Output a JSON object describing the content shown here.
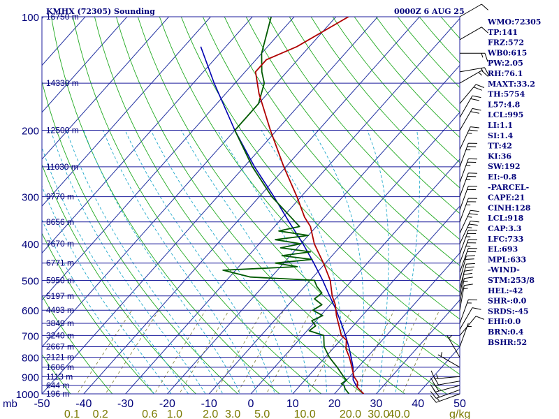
{
  "header": {
    "station": "KMHX (72305) Sounding",
    "time": "0000Z  6 AUG 25"
  },
  "colors": {
    "background": "#ffffff",
    "axis_text": "#00007a",
    "isobar": "#1c1c9c",
    "isotherm": "#2030a0",
    "dry_adiabat": "#22aa22",
    "moist_adiabat": "#22aacc",
    "mixing_ratio": "#7a7a30",
    "temperature": "#b00000",
    "dewpoint": "#005a00",
    "parcel": "#0000b0",
    "mixing_ratio_text": "#7a7a00",
    "wind": "#000000"
  },
  "chart_data": {
    "type": "skew-t log-p",
    "pressure_units": "mb",
    "pressure_range": [
      1000,
      100
    ],
    "temperature_range": [
      -50,
      50
    ],
    "pressure_ticks": [
      "100",
      "200",
      "300",
      "400",
      "500",
      "600",
      "700",
      "800",
      "900",
      "1000"
    ],
    "temperature_ticks": [
      "-50",
      "-40",
      "-30",
      "-20",
      "-10",
      "0",
      "10",
      "20",
      "30",
      "40",
      "50"
    ],
    "mixing_ratio_ticks": [
      "0.1",
      "0.2",
      "0.6",
      "1.0",
      "2.0",
      "3.0",
      "5.0",
      "10.0",
      "20.0",
      "30.0",
      "40.0"
    ],
    "mixing_ratio_units": "g/kg",
    "height_labels": [
      "16750 m",
      "14330 m",
      "12500 m",
      "11030 m",
      "9770 m",
      "8656 m",
      "7670 m",
      "6771 m",
      "5950 m",
      "5197 m",
      "4493 m",
      "3849 m",
      "3240 m",
      "2667 m",
      "2121 m",
      "1606 m",
      "1113 m",
      "644 m",
      "196 m"
    ],
    "height_pressures": [
      100,
      150,
      200,
      250,
      300,
      350,
      400,
      450,
      500,
      550,
      600,
      650,
      700,
      750,
      800,
      850,
      900,
      950,
      1000
    ],
    "temperature_profile": [
      {
        "p": 1000,
        "t": 27.0
      },
      {
        "p": 960,
        "t": 24.0
      },
      {
        "p": 930,
        "t": 23.0
      },
      {
        "p": 900,
        "t": 21.0
      },
      {
        "p": 850,
        "t": 18.5
      },
      {
        "p": 800,
        "t": 15.8
      },
      {
        "p": 760,
        "t": 13.2
      },
      {
        "p": 720,
        "t": 11.4
      },
      {
        "p": 700,
        "t": 9.2
      },
      {
        "p": 660,
        "t": 6.6
      },
      {
        "p": 620,
        "t": 3.8
      },
      {
        "p": 580,
        "t": 1.2
      },
      {
        "p": 550,
        "t": -1.4
      },
      {
        "p": 500,
        "t": -5.2
      },
      {
        "p": 450,
        "t": -10.5
      },
      {
        "p": 400,
        "t": -16.8
      },
      {
        "p": 360,
        "t": -21.4
      },
      {
        "p": 340,
        "t": -24.8
      },
      {
        "p": 300,
        "t": -31.0
      },
      {
        "p": 250,
        "t": -40.5
      },
      {
        "p": 200,
        "t": -51.5
      },
      {
        "p": 160,
        "t": -62.0
      },
      {
        "p": 140,
        "t": -67.5
      },
      {
        "p": 130,
        "t": -67.5
      },
      {
        "p": 120,
        "t": -63.0
      },
      {
        "p": 100,
        "t": -57.0
      }
    ],
    "dewpoint_profile": [
      {
        "p": 1000,
        "t": 23.5
      },
      {
        "p": 970,
        "t": 21.5
      },
      {
        "p": 950,
        "t": 20.5
      },
      {
        "p": 940,
        "t": 19.5
      },
      {
        "p": 920,
        "t": 20.0
      },
      {
        "p": 900,
        "t": 18.5
      },
      {
        "p": 850,
        "t": 15.0
      },
      {
        "p": 800,
        "t": 11.0
      },
      {
        "p": 750,
        "t": 7.5
      },
      {
        "p": 700,
        "t": 5.0
      },
      {
        "p": 680,
        "t": 0.5
      },
      {
        "p": 660,
        "t": 1.0
      },
      {
        "p": 640,
        "t": -1.0
      },
      {
        "p": 620,
        "t": 0.5
      },
      {
        "p": 600,
        "t": -3.0
      },
      {
        "p": 580,
        "t": -2.0
      },
      {
        "p": 560,
        "t": -5.0
      },
      {
        "p": 540,
        "t": -4.5
      },
      {
        "p": 520,
        "t": -7.0
      },
      {
        "p": 500,
        "t": -9.0
      },
      {
        "p": 490,
        "t": -25.0
      },
      {
        "p": 470,
        "t": -33.0
      },
      {
        "p": 460,
        "t": -16.0
      },
      {
        "p": 450,
        "t": -22.0
      },
      {
        "p": 440,
        "t": -14.0
      },
      {
        "p": 430,
        "t": -22.0
      },
      {
        "p": 420,
        "t": -16.0
      },
      {
        "p": 410,
        "t": -24.0
      },
      {
        "p": 400,
        "t": -20.0
      },
      {
        "p": 390,
        "t": -27.0
      },
      {
        "p": 380,
        "t": -20.0
      },
      {
        "p": 370,
        "t": -28.0
      },
      {
        "p": 360,
        "t": -24.0
      },
      {
        "p": 350,
        "t": -26.0
      },
      {
        "p": 300,
        "t": -37.0
      },
      {
        "p": 250,
        "t": -48.0
      },
      {
        "p": 200,
        "t": -60.0
      },
      {
        "p": 170,
        "t": -60.0
      },
      {
        "p": 150,
        "t": -63.0
      },
      {
        "p": 140,
        "t": -66.0
      },
      {
        "p": 125,
        "t": -70.0
      },
      {
        "p": 100,
        "t": -75.5
      }
    ],
    "parcel_profile": [
      {
        "p": 1000,
        "t": 27.0
      },
      {
        "p": 960,
        "t": 24.0
      },
      {
        "p": 918,
        "t": 21.5
      },
      {
        "p": 850,
        "t": 18.8
      },
      {
        "p": 800,
        "t": 16.2
      },
      {
        "p": 750,
        "t": 13.4
      },
      {
        "p": 700,
        "t": 10.2
      },
      {
        "p": 650,
        "t": 6.6
      },
      {
        "p": 600,
        "t": 2.6
      },
      {
        "p": 550,
        "t": -2.0
      },
      {
        "p": 500,
        "t": -7.0
      },
      {
        "p": 450,
        "t": -12.8
      },
      {
        "p": 400,
        "t": -19.5
      },
      {
        "p": 350,
        "t": -27.5
      },
      {
        "p": 300,
        "t": -36.5
      },
      {
        "p": 250,
        "t": -47.5
      },
      {
        "p": 200,
        "t": -60.0
      },
      {
        "p": 150,
        "t": -75.0
      },
      {
        "p": 120,
        "t": -86.0
      }
    ],
    "wind_barbs": [
      {
        "p": 1000,
        "dir": 250,
        "kt": 15
      },
      {
        "p": 975,
        "dir": 250,
        "kt": 20
      },
      {
        "p": 950,
        "dir": 255,
        "kt": 20
      },
      {
        "p": 925,
        "dir": 260,
        "kt": 20
      },
      {
        "p": 900,
        "dir": 265,
        "kt": 15
      },
      {
        "p": 850,
        "dir": 300,
        "kt": 5
      },
      {
        "p": 800,
        "dir": 330,
        "kt": 5
      },
      {
        "p": 750,
        "dir": 20,
        "kt": 5
      },
      {
        "p": 700,
        "dir": 40,
        "kt": 10
      },
      {
        "p": 675,
        "dir": 30,
        "kt": 10
      },
      {
        "p": 650,
        "dir": 20,
        "kt": 15
      },
      {
        "p": 600,
        "dir": 10,
        "kt": 15
      },
      {
        "p": 575,
        "dir": 10,
        "kt": 15
      },
      {
        "p": 550,
        "dir": 10,
        "kt": 20
      },
      {
        "p": 525,
        "dir": 15,
        "kt": 20
      },
      {
        "p": 500,
        "dir": 15,
        "kt": 20
      },
      {
        "p": 475,
        "dir": 20,
        "kt": 20
      },
      {
        "p": 450,
        "dir": 20,
        "kt": 25
      },
      {
        "p": 425,
        "dir": 20,
        "kt": 25
      },
      {
        "p": 400,
        "dir": 25,
        "kt": 25
      },
      {
        "p": 375,
        "dir": 25,
        "kt": 25
      },
      {
        "p": 350,
        "dir": 20,
        "kt": 25
      },
      {
        "p": 325,
        "dir": 20,
        "kt": 20
      },
      {
        "p": 300,
        "dir": 20,
        "kt": 25
      },
      {
        "p": 275,
        "dir": 20,
        "kt": 25
      },
      {
        "p": 250,
        "dir": 20,
        "kt": 25
      },
      {
        "p": 225,
        "dir": 25,
        "kt": 25
      },
      {
        "p": 200,
        "dir": 30,
        "kt": 20
      },
      {
        "p": 185,
        "dir": 30,
        "kt": 20
      },
      {
        "p": 170,
        "dir": 40,
        "kt": 20
      },
      {
        "p": 150,
        "dir": 60,
        "kt": 15
      },
      {
        "p": 140,
        "dir": 80,
        "kt": 15
      },
      {
        "p": 125,
        "dir": 90,
        "kt": 15
      },
      {
        "p": 115,
        "dir": 60,
        "kt": 10
      },
      {
        "p": 100,
        "dir": 60,
        "kt": 10
      }
    ]
  },
  "indices": [
    "WMO:72305",
    "TP:141",
    "FRZ:572",
    "WB0:615",
    "PW:2.05",
    "RH:76.1",
    "MAXT:33.2",
    "TH:5754",
    "L57:4.8",
    "LCL:995",
    "LI:1.1",
    "SI:1.4",
    "TT:42",
    "KI:36",
    "SW:192",
    "EI:-0.8",
    "-PARCEL-",
    "CAPE:21",
    "CINH:128",
    "LCL:918",
    "CAP:3.3",
    "LFC:733",
    "EL:693",
    "MPL:633",
    "-WIND-",
    "STM:253/8",
    "HEL:-42",
    "SHR-:0.0",
    "SRDS:-45",
    "EHI:0.0",
    "BRN:0.4",
    "BSHR:52"
  ]
}
